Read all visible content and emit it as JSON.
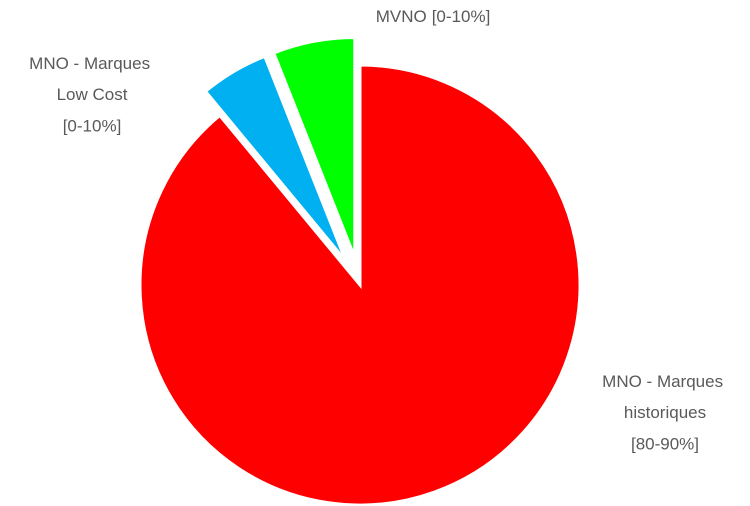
{
  "chart_data": {
    "type": "pie",
    "categories": [
      "MNO - Marques historiques",
      "MNO - Marques Low Cost",
      "MVNO"
    ],
    "values": [
      89,
      5,
      6
    ],
    "value_labels": [
      "[80-90%]",
      "[0-10%]",
      "[0-10%]"
    ],
    "colors": [
      "#ff0000",
      "#00b0f0",
      "#00ff00"
    ]
  }
}
